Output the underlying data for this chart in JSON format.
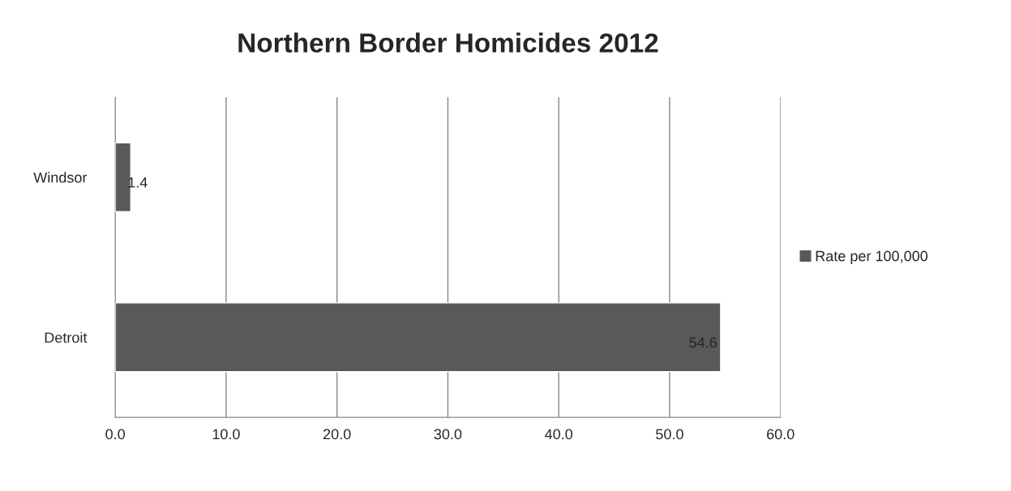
{
  "chart_data": {
    "type": "bar",
    "orientation": "horizontal",
    "title": "Northern Border Homicides 2012",
    "categories": [
      "Windsor",
      "Detroit"
    ],
    "series": [
      {
        "name": "Rate per 100,000",
        "color": "#595959",
        "values": [
          1.4,
          54.6
        ]
      }
    ],
    "data_labels": true,
    "xlim": [
      0,
      60
    ],
    "xticks": [
      {
        "value": 0,
        "label": "0.0"
      },
      {
        "value": 10,
        "label": "10.0"
      },
      {
        "value": 20,
        "label": "20.0"
      },
      {
        "value": 30,
        "label": "30.0"
      },
      {
        "value": 40,
        "label": "40.0"
      },
      {
        "value": 50,
        "label": "50.0"
      },
      {
        "value": 60,
        "label": "60.0"
      }
    ],
    "grid": "x",
    "legend": "right"
  }
}
